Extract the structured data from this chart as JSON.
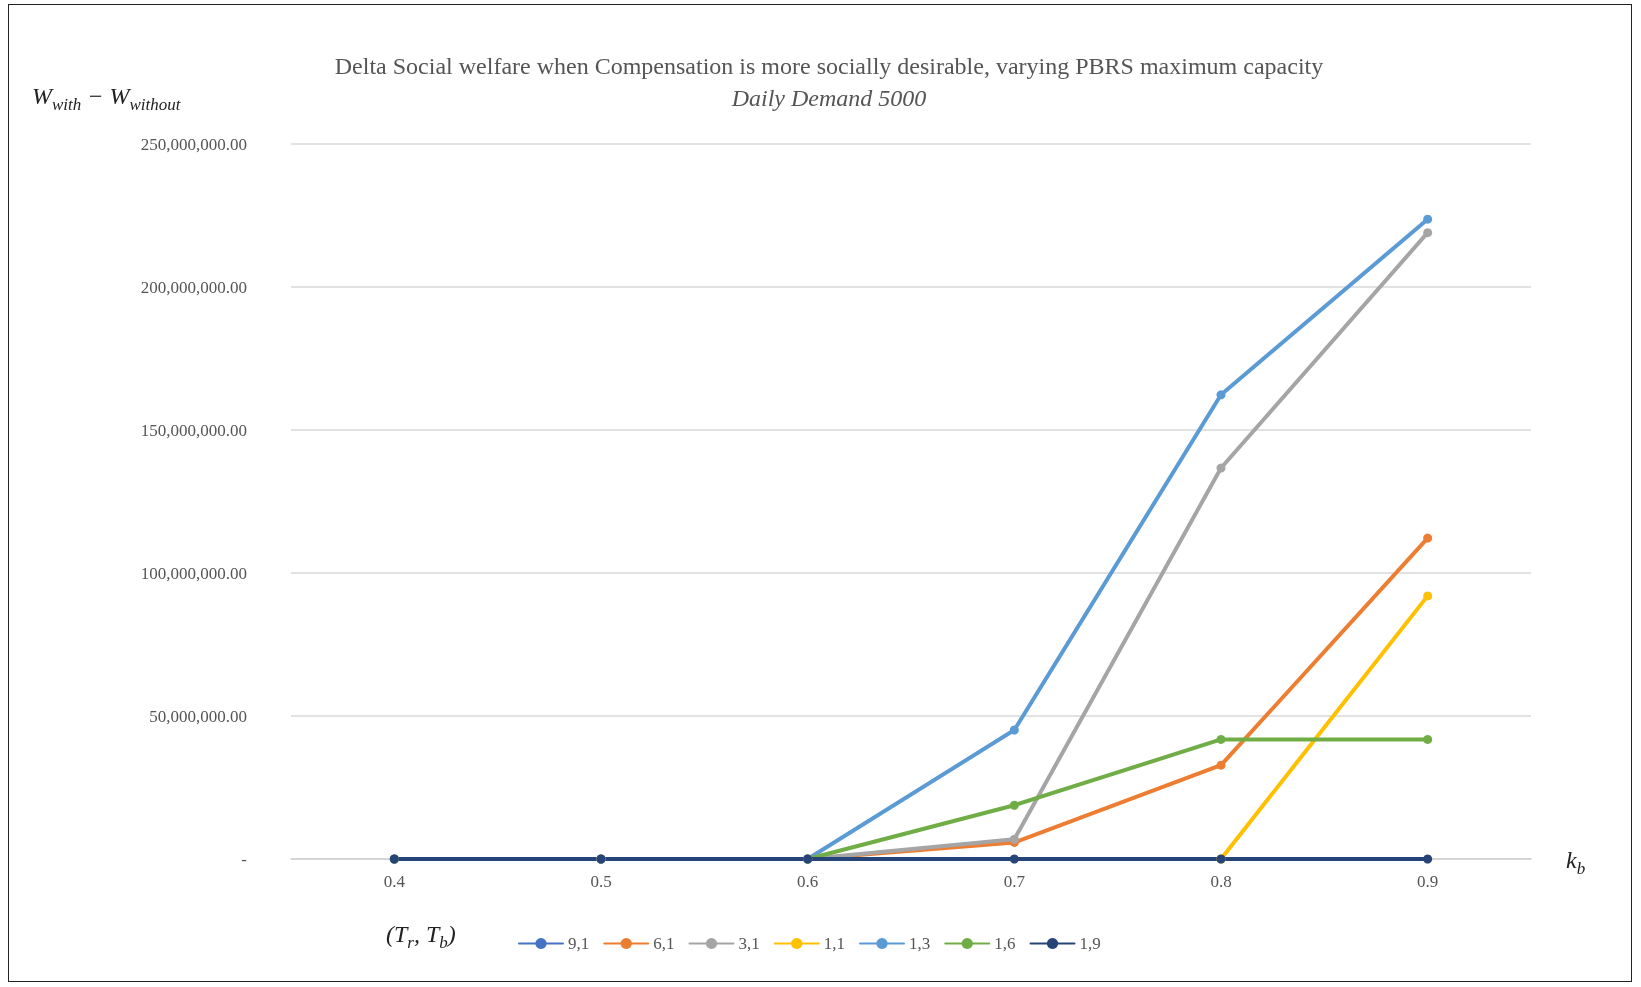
{
  "chart_data": {
    "type": "line",
    "title": "Delta Social welfare when Compensation is more socially desirable, varying PBRS maximum capacity",
    "subtitle": "Daily Demand 5000",
    "xlabel": "k$_{b}$",
    "ylabel": "W$_{with}$ − W$_{without}$",
    "legend_title": "(T$_{r}$, T$_{b}$)",
    "categories": [
      "0.4",
      "0.5",
      "0.6",
      "0.7",
      "0.8",
      "0.9"
    ],
    "series": [
      {
        "name": "9,1",
        "color": "#4472c4",
        "values": [
          null,
          null,
          null,
          null,
          null,
          null
        ]
      },
      {
        "name": "6,1",
        "color": "#ed7d31",
        "values": [
          0,
          0,
          0,
          5800000,
          32800000,
          112200000
        ]
      },
      {
        "name": "3,1",
        "color": "#a5a5a5",
        "values": [
          0,
          0,
          0,
          6900000,
          136700000,
          219000000
        ]
      },
      {
        "name": "1,1",
        "color": "#ffc000",
        "values": [
          null,
          null,
          null,
          null,
          0,
          92000000
        ]
      },
      {
        "name": "1,3",
        "color": "#5b9bd5",
        "values": [
          0,
          0,
          0,
          45100000,
          162300000,
          223700000
        ]
      },
      {
        "name": "1,6",
        "color": "#70ad47",
        "values": [
          0,
          0,
          0,
          18800000,
          41800000,
          41800000
        ]
      },
      {
        "name": "1,9",
        "color": "#264478",
        "values": [
          0,
          0,
          0,
          0,
          0,
          0
        ]
      }
    ],
    "ylim": [
      0,
      250000000
    ],
    "yticks": [
      {
        "value": 0,
        "label": "-"
      },
      {
        "value": 50000000,
        "label": "50,000,000.00"
      },
      {
        "value": 100000000,
        "label": "100,000,000.00"
      },
      {
        "value": 150000000,
        "label": "150,000,000.00"
      },
      {
        "value": 200000000,
        "label": "200,000,000.00"
      },
      {
        "value": 250000000,
        "label": "250,000,000.00"
      }
    ],
    "grid": "y",
    "legend": "bottom",
    "marker": "circle",
    "line_style": "solid"
  }
}
